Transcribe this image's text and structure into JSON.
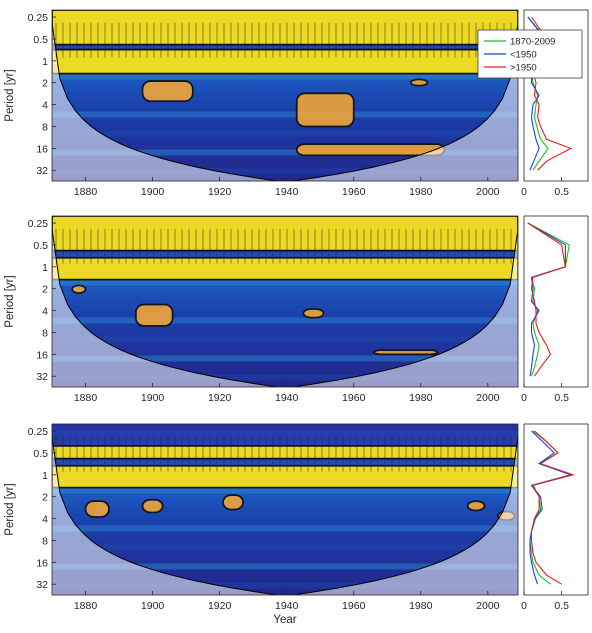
{
  "chart_data": [
    {
      "type": "heatmap",
      "panel": 1,
      "ylabel": "Period [yr]",
      "xlabel": "",
      "xlim": [
        1870,
        2009
      ],
      "xticks": [
        1880,
        1900,
        1920,
        1940,
        1960,
        1980,
        2000
      ],
      "yticks": [
        0.25,
        0.5,
        1,
        2,
        4,
        8,
        16,
        32
      ],
      "ylim": [
        0.2,
        45
      ],
      "y_scale": "log2",
      "significant_regions": [
        {
          "xmin": 1870,
          "xmax": 2009,
          "pmin": 0.2,
          "pmax": 0.6
        },
        {
          "xmin": 1870,
          "xmax": 2009,
          "pmin": 0.7,
          "pmax": 1.5
        },
        {
          "xmin": 1897,
          "xmax": 1912,
          "pmin": 1.9,
          "pmax": 3.6
        },
        {
          "xmin": 1943,
          "xmax": 1960,
          "pmin": 2.8,
          "pmax": 8
        },
        {
          "xmin": 1943,
          "xmax": 1987,
          "pmin": 14,
          "pmax": 20
        },
        {
          "xmin": 1977,
          "xmax": 1982,
          "pmin": 1.8,
          "pmax": 2.2
        }
      ],
      "global_spectrum": {
        "xticks": [
          0,
          0.5
        ],
        "xlim": [
          0,
          0.85
        ],
        "legend": [
          "1870-2009",
          "<1950",
          ">1950"
        ],
        "legend_position": "top-right",
        "series": [
          {
            "name": "1870-2009",
            "color": "#1fbf1f",
            "period": [
              0.25,
              0.5,
              1,
              1.4,
              2,
              3,
              4,
              6,
              8,
              12,
              16,
              24,
              32
            ],
            "power": [
              0.05,
              0.3,
              0.55,
              0.1,
              0.12,
              0.18,
              0.16,
              0.14,
              0.17,
              0.22,
              0.32,
              0.2,
              0.12
            ]
          },
          {
            "name": "<1950",
            "color": "#1f3fe0",
            "period": [
              0.25,
              0.5,
              1,
              1.4,
              2,
              3,
              4,
              6,
              8,
              12,
              16,
              24,
              32
            ],
            "power": [
              0.05,
              0.28,
              0.55,
              0.1,
              0.1,
              0.2,
              0.12,
              0.1,
              0.12,
              0.16,
              0.2,
              0.13,
              0.08
            ]
          },
          {
            "name": ">1950",
            "color": "#e02020",
            "period": [
              0.25,
              0.5,
              1,
              1.4,
              2,
              3,
              4,
              6,
              8,
              12,
              16,
              24,
              32
            ],
            "power": [
              0.1,
              0.3,
              0.55,
              0.12,
              0.16,
              0.14,
              0.2,
              0.18,
              0.22,
              0.3,
              0.62,
              0.3,
              0.18
            ]
          }
        ]
      }
    },
    {
      "type": "heatmap",
      "panel": 2,
      "ylabel": "Period [yr]",
      "xlabel": "",
      "xlim": [
        1870,
        2009
      ],
      "xticks": [
        1880,
        1900,
        1920,
        1940,
        1960,
        1980,
        2000
      ],
      "yticks": [
        0.25,
        0.5,
        1,
        2,
        4,
        8,
        16,
        32
      ],
      "ylim": [
        0.2,
        45
      ],
      "y_scale": "log2",
      "significant_regions": [
        {
          "xmin": 1870,
          "xmax": 2009,
          "pmin": 0.2,
          "pmax": 0.6
        },
        {
          "xmin": 1870,
          "xmax": 2009,
          "pmin": 0.75,
          "pmax": 1.5
        },
        {
          "xmin": 1895,
          "xmax": 1906,
          "pmin": 3.3,
          "pmax": 6.5
        },
        {
          "xmin": 1945,
          "xmax": 1951,
          "pmin": 3.8,
          "pmax": 5
        },
        {
          "xmin": 1876,
          "xmax": 1880,
          "pmin": 1.8,
          "pmax": 2.3
        },
        {
          "xmin": 1966,
          "xmax": 1985,
          "pmin": 14,
          "pmax": 16
        }
      ],
      "global_spectrum": {
        "xticks": [
          0,
          0.5
        ],
        "xlim": [
          0,
          0.85
        ],
        "series": [
          {
            "name": "1870-2009",
            "color": "#1fbf1f",
            "period": [
              0.25,
              0.5,
              1,
              1.4,
              2,
              3,
              4,
              6,
              8,
              12,
              16,
              24,
              32
            ],
            "power": [
              0.05,
              0.6,
              0.55,
              0.1,
              0.14,
              0.12,
              0.18,
              0.12,
              0.14,
              0.2,
              0.18,
              0.14,
              0.1
            ]
          },
          {
            "name": "<1950",
            "color": "#1f3fe0",
            "period": [
              0.25,
              0.5,
              1,
              1.4,
              2,
              3,
              4,
              6,
              8,
              12,
              16,
              24,
              32
            ],
            "power": [
              0.05,
              0.55,
              0.55,
              0.1,
              0.12,
              0.1,
              0.2,
              0.1,
              0.1,
              0.14,
              0.12,
              0.1,
              0.08
            ]
          },
          {
            "name": ">1950",
            "color": "#e02020",
            "period": [
              0.25,
              0.5,
              1,
              1.4,
              2,
              3,
              4,
              6,
              8,
              12,
              16,
              24,
              32
            ],
            "power": [
              0.05,
              0.5,
              0.55,
              0.12,
              0.1,
              0.14,
              0.16,
              0.16,
              0.2,
              0.3,
              0.35,
              0.22,
              0.14
            ]
          }
        ]
      }
    },
    {
      "type": "heatmap",
      "panel": 3,
      "ylabel": "Period [yr]",
      "xlabel": "Year",
      "xlim": [
        1870,
        2009
      ],
      "xticks": [
        1880,
        1900,
        1920,
        1940,
        1960,
        1980,
        2000
      ],
      "yticks": [
        0.25,
        0.5,
        1,
        2,
        4,
        8,
        16,
        32
      ],
      "ylim": [
        0.2,
        45
      ],
      "y_scale": "log2",
      "significant_regions": [
        {
          "xmin": 1870,
          "xmax": 2009,
          "pmin": 0.4,
          "pmax": 0.6
        },
        {
          "xmin": 1870,
          "xmax": 2009,
          "pmin": 0.75,
          "pmax": 1.5
        },
        {
          "xmin": 1880,
          "xmax": 1887,
          "pmin": 2.3,
          "pmax": 3.8
        },
        {
          "xmin": 1897,
          "xmax": 1903,
          "pmin": 2.2,
          "pmax": 3.3
        },
        {
          "xmin": 1921,
          "xmax": 1927,
          "pmin": 1.9,
          "pmax": 3
        },
        {
          "xmin": 1994,
          "xmax": 1999,
          "pmin": 2.3,
          "pmax": 3.1
        },
        {
          "xmin": 2003,
          "xmax": 2008,
          "pmin": 3.2,
          "pmax": 4.2
        }
      ],
      "global_spectrum": {
        "xticks": [
          0,
          0.5
        ],
        "xlim": [
          0,
          0.85
        ],
        "series": [
          {
            "name": "1870-2009",
            "color": "#1fbf1f",
            "period": [
              0.25,
              0.35,
              0.5,
              0.7,
              1,
              1.4,
              2,
              3,
              4,
              6,
              8,
              12,
              16,
              24,
              32
            ],
            "power": [
              0.12,
              0.3,
              0.45,
              0.2,
              0.65,
              0.1,
              0.2,
              0.22,
              0.14,
              0.1,
              0.08,
              0.1,
              0.12,
              0.2,
              0.35
            ]
          },
          {
            "name": "<1950",
            "color": "#1f3fe0",
            "period": [
              0.25,
              0.35,
              0.5,
              0.7,
              1,
              1.4,
              2,
              3,
              4,
              6,
              8,
              12,
              16,
              24,
              32
            ],
            "power": [
              0.1,
              0.25,
              0.4,
              0.2,
              0.62,
              0.1,
              0.22,
              0.24,
              0.15,
              0.1,
              0.08,
              0.08,
              0.1,
              0.14,
              0.18
            ]
          },
          {
            "name": ">1950",
            "color": "#e02020",
            "period": [
              0.25,
              0.35,
              0.5,
              0.7,
              1,
              1.4,
              2,
              3,
              4,
              6,
              8,
              12,
              16,
              24,
              32
            ],
            "power": [
              0.14,
              0.3,
              0.45,
              0.22,
              0.65,
              0.12,
              0.2,
              0.2,
              0.14,
              0.1,
              0.1,
              0.12,
              0.16,
              0.3,
              0.5
            ]
          }
        ]
      }
    }
  ]
}
